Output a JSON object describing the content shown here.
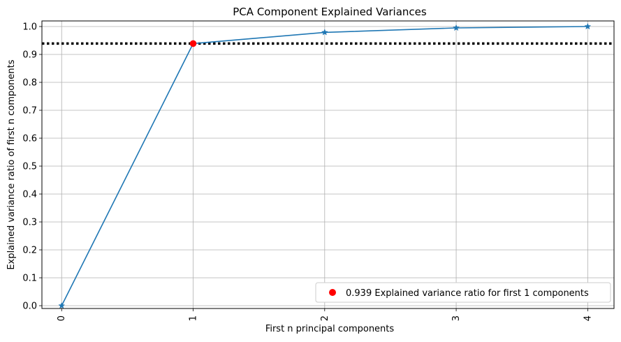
{
  "chart_data": {
    "type": "line",
    "title": "PCA Component Explained Variances",
    "xlabel": "First n principal components",
    "ylabel": "Explained variance ratio of first n components",
    "x": [
      0,
      1,
      2,
      3,
      4
    ],
    "xticks": [
      "0",
      "1",
      "2",
      "3",
      "4"
    ],
    "xtick_rotation": 90,
    "xlim": [
      -0.15,
      4.2
    ],
    "ylim": [
      -0.01,
      1.02
    ],
    "yticks": [
      "0.0",
      "0.1",
      "0.2",
      "0.3",
      "0.4",
      "0.5",
      "0.6",
      "0.7",
      "0.8",
      "0.9",
      "1.0"
    ],
    "ytick_values": [
      0.0,
      0.1,
      0.2,
      0.3,
      0.4,
      0.5,
      0.6,
      0.7,
      0.8,
      0.9,
      1.0
    ],
    "grid": true,
    "series": [
      {
        "values": [
          0.0,
          0.939,
          0.979,
          0.995,
          1.0
        ],
        "color": "#1f77b4",
        "marker": "star"
      }
    ],
    "threshold_line": {
      "y": 0.939,
      "style": "dotted",
      "color": "#000000"
    },
    "highlight_point": {
      "x": 1,
      "y": 0.939,
      "color": "#ff0000",
      "label": "0.939 Explained variance ratio for first 1 components"
    },
    "legend_position": "lower-right"
  }
}
